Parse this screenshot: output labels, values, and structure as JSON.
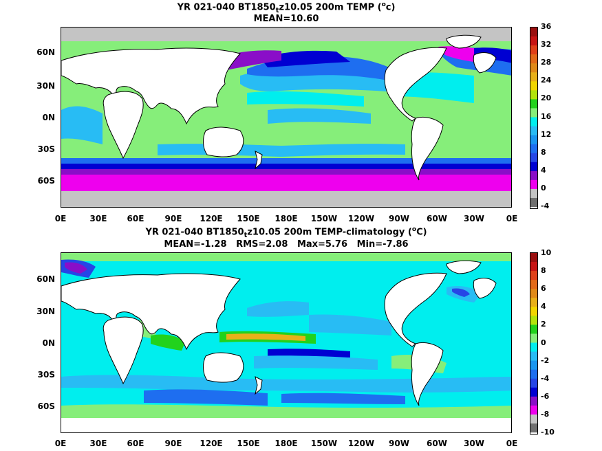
{
  "panels": [
    {
      "title": "YR 021-040 BT1850",
      "subscript": "t",
      "title_rest": "z10.05 200m TEMP (",
      "unit_sup": "o",
      "unit_rest": "c)",
      "stats": "MEAN=10.60",
      "y_labels": [
        "60N",
        "30N",
        "0N",
        "30S",
        "60S"
      ],
      "x_labels": [
        "0E",
        "30E",
        "60E",
        "90E",
        "120E",
        "150E",
        "180E",
        "150W",
        "120W",
        "90W",
        "60W",
        "30W",
        "0E"
      ],
      "colorbar_labels": [
        "36",
        "32",
        "28",
        "24",
        "20",
        "16",
        "12",
        "8",
        "4",
        "0",
        "-4"
      ],
      "colorbar_colors": [
        "#9a0f0f",
        "#c81414",
        "#e0401a",
        "#e26a1a",
        "#e08a1a",
        "#e8b01a",
        "#f2d600",
        "#b2e40c",
        "#22d21c",
        "#86ee7a",
        "#00eeee",
        "#28bcf4",
        "#1a96f0",
        "#1e6ef0",
        "#2646e6",
        "#0000d2",
        "#8a0ec8",
        "#ee00ee",
        "#c4c4c4",
        "#707070"
      ]
    },
    {
      "title": "YR 021-040 BT1850",
      "subscript": "t",
      "title_rest": "z10.05 200m TEMP-climatology (",
      "unit_sup": "o",
      "unit_rest": "C)",
      "stats": "MEAN=-1.28   RMS=2.08   Max=5.76   Min=-7.86",
      "y_labels": [
        "60N",
        "30N",
        "0N",
        "30S",
        "60S"
      ],
      "x_labels": [
        "0E",
        "30E",
        "60E",
        "90E",
        "120E",
        "150E",
        "180E",
        "150W",
        "120W",
        "90W",
        "60W",
        "30W",
        "0E"
      ],
      "colorbar_labels": [
        "10",
        "8",
        "6",
        "4",
        "2",
        "0",
        "-2",
        "-4",
        "-6",
        "-8",
        "-10"
      ],
      "colorbar_colors": [
        "#9a0f0f",
        "#c81414",
        "#e0401a",
        "#e26a1a",
        "#e08a1a",
        "#e8b01a",
        "#f2d600",
        "#b2e40c",
        "#22d21c",
        "#86ee7a",
        "#00eeee",
        "#28bcf4",
        "#1a96f0",
        "#1e6ef0",
        "#2646e6",
        "#0000d2",
        "#8a0ec8",
        "#ee00ee",
        "#c4c4c4",
        "#707070"
      ]
    }
  ]
}
